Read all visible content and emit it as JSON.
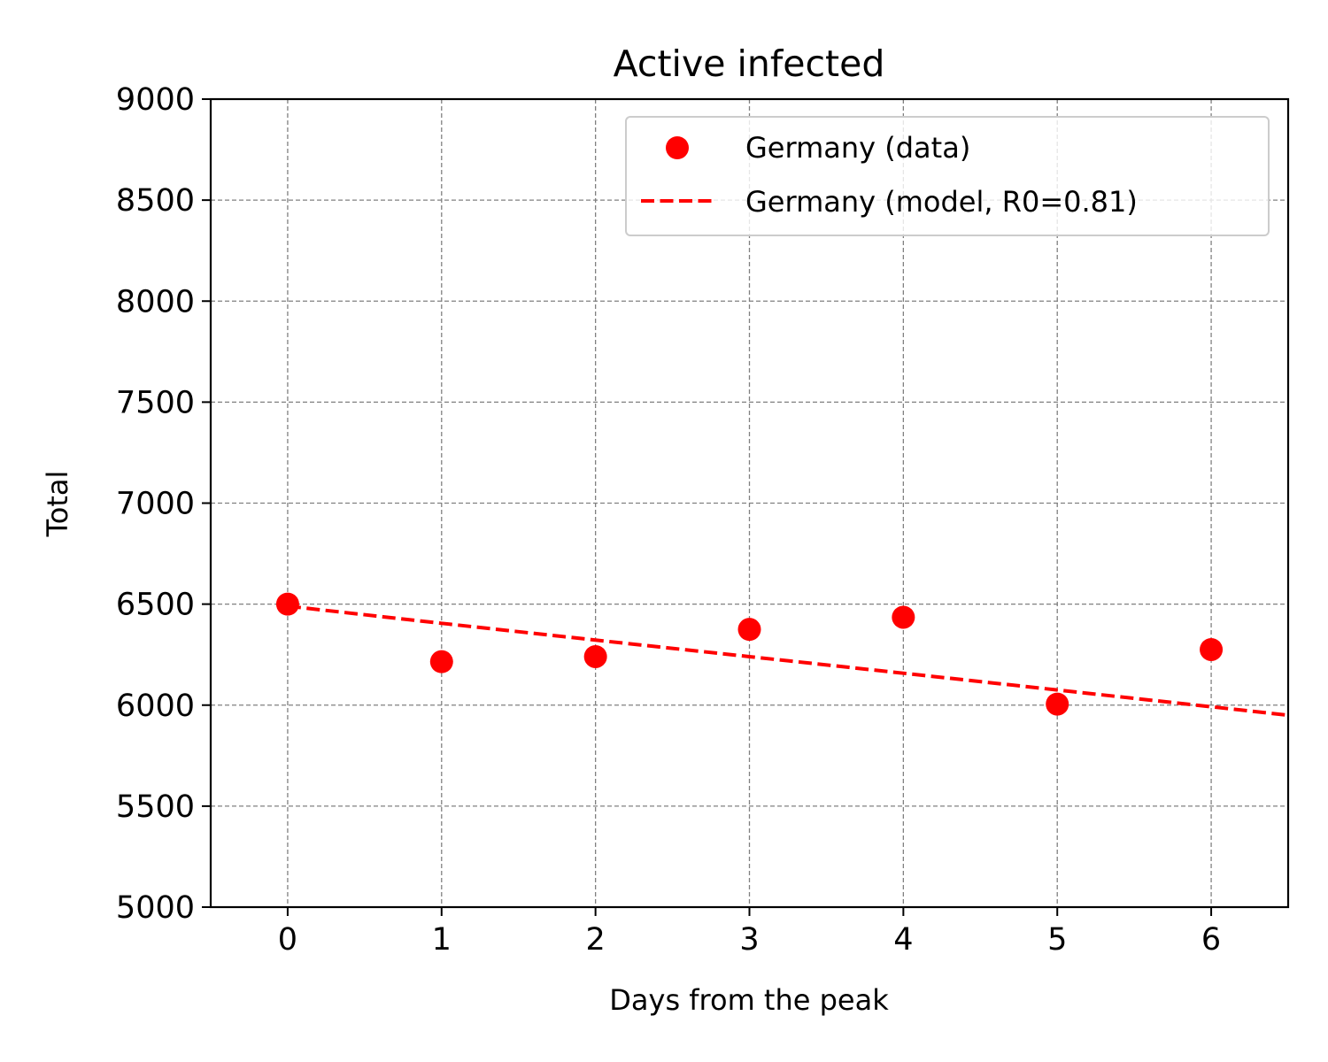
{
  "chart_data": {
    "type": "scatter",
    "title": "Active infected",
    "xlabel": "Days from the peak",
    "ylabel": "Total",
    "xlim": [
      -0.5,
      6.5
    ],
    "ylim": [
      5000,
      9000
    ],
    "x_ticks": [
      "0",
      "1",
      "2",
      "3",
      "4",
      "5",
      "6"
    ],
    "y_ticks": [
      "5000",
      "5500",
      "6000",
      "6500",
      "7000",
      "7500",
      "8000",
      "8500",
      "9000"
    ],
    "grid": true,
    "legend_position": "top-right",
    "series": [
      {
        "name": "Germany (data)",
        "kind": "markers",
        "color": "#ff0000",
        "x": [
          0,
          1,
          2,
          3,
          4,
          5,
          6
        ],
        "y": [
          6500,
          6215,
          6240,
          6375,
          6435,
          6005,
          6275
        ]
      },
      {
        "name": "Germany (model, R0=0.81)",
        "kind": "dashed-line",
        "color": "#ff0000",
        "x": [
          0,
          1,
          2,
          3,
          4,
          5,
          6,
          6.5
        ],
        "y": [
          6490,
          6405,
          6322,
          6240,
          6158,
          6075,
          5992,
          5950
        ]
      }
    ]
  }
}
